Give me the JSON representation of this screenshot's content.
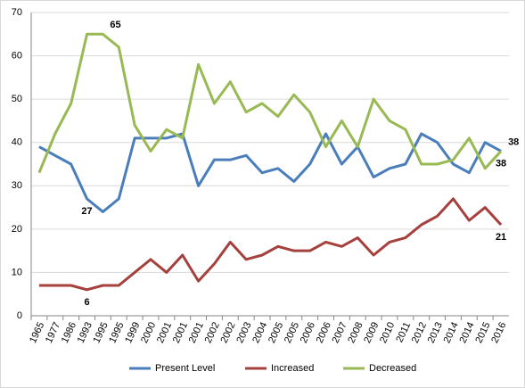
{
  "chart_data": {
    "type": "line",
    "categories": [
      "1965",
      "1977",
      "1986",
      "1993",
      "1995",
      "1995",
      "1999",
      "2000",
      "2001",
      "2001",
      "2001",
      "2002",
      "2002",
      "2003",
      "2004",
      "2005",
      "2005",
      "2006",
      "2006",
      "2007",
      "2008",
      "2009",
      "2010",
      "2011",
      "2012",
      "2013",
      "2014",
      "2014",
      "2015",
      "2016"
    ],
    "series": [
      {
        "name": "Present Level",
        "color": "#4a7ebb",
        "values": [
          39,
          37,
          35,
          27,
          24,
          27,
          41,
          41,
          41,
          42,
          30,
          36,
          36,
          37,
          33,
          34,
          31,
          35,
          42,
          35,
          39,
          32,
          34,
          35,
          42,
          40,
          35,
          33,
          40,
          38
        ],
        "labeled_points": [
          3,
          29
        ]
      },
      {
        "name": "Increased",
        "color": "#a5403d",
        "values": [
          7,
          7,
          7,
          6,
          7,
          7,
          10,
          13,
          10,
          14,
          8,
          12,
          17,
          13,
          14,
          16,
          15,
          15,
          17,
          16,
          18,
          14,
          17,
          18,
          21,
          23,
          27,
          22,
          25,
          21
        ],
        "labeled_points": [
          3,
          29
        ]
      },
      {
        "name": "Decreased",
        "color": "#98b954",
        "values": [
          33,
          42,
          49,
          65,
          65,
          62,
          44,
          38,
          43,
          41,
          58,
          49,
          54,
          47,
          49,
          46,
          51,
          47,
          39,
          45,
          39,
          50,
          45,
          43,
          35,
          35,
          36,
          41,
          34,
          38
        ],
        "labeled_points": [
          4,
          29
        ]
      }
    ],
    "ylim": [
      0,
      70
    ],
    "yticks": [
      0,
      10,
      20,
      30,
      40,
      50,
      60,
      70
    ],
    "grid": true,
    "legend": "bottom"
  }
}
